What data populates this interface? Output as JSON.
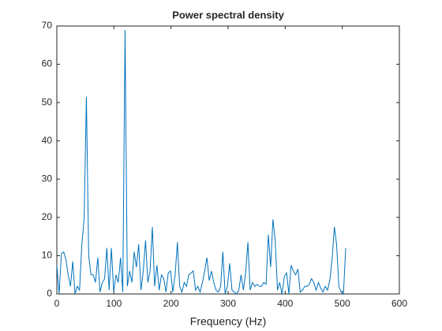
{
  "chart_data": {
    "type": "line",
    "title": "Power spectral density",
    "xlabel": "Frequency (Hz)",
    "x": [
      0,
      4.0,
      8.0,
      12.0,
      15.9,
      19.9,
      23.9,
      27.9,
      31.9,
      35.9,
      39.8,
      43.8,
      47.8,
      51.8,
      55.8,
      59.8,
      63.7,
      67.7,
      71.7,
      75.7,
      79.7,
      83.7,
      87.6,
      91.6,
      95.6,
      99.6,
      103.6,
      107.6,
      111.6,
      115.5,
      119.5,
      123.5,
      127.5,
      131.5,
      135.5,
      139.4,
      143.4,
      147.4,
      151.4,
      155.4,
      159.4,
      163.3,
      167.3,
      171.3,
      175.3,
      179.3,
      183.3,
      187.3,
      191.2,
      195.2,
      199.2,
      203.2,
      207.2,
      211.2,
      215.1,
      219.1,
      223.1,
      227.1,
      231.1,
      235.1,
      239.0,
      243.0,
      247.0,
      251.0,
      255.0,
      259.0,
      262.9,
      266.9,
      270.9,
      274.9,
      278.9,
      282.9,
      286.9,
      290.8,
      294.8,
      298.8,
      302.8,
      306.8,
      310.8,
      314.7,
      318.7,
      322.7,
      326.7,
      330.7,
      334.7,
      338.6,
      342.6,
      346.6,
      350.6,
      354.6,
      358.6,
      362.5,
      366.5,
      370.5,
      374.5,
      378.5,
      382.5,
      386.5,
      390.4,
      394.4,
      398.4,
      402.4,
      406.4,
      410.4,
      414.3,
      418.3,
      422.3,
      426.3,
      430.3,
      434.3,
      438.2,
      442.2,
      446.2,
      450.2,
      454.2,
      458.2,
      462.2,
      466.1,
      470.1,
      474.1,
      478.1,
      482.1,
      486.1,
      490.0,
      494.0,
      498.0,
      502.0,
      506.0
    ],
    "series": [
      {
        "color": "#0072bd",
        "values": [
          7.5,
          0,
          10.5,
          11,
          9,
          5,
          2,
          8.5,
          0,
          2,
          1,
          13,
          19.5,
          51.5,
          10,
          5,
          5,
          3,
          9.5,
          0.5,
          3,
          4,
          12,
          1,
          12,
          0.5,
          5,
          3,
          9.5,
          0.5,
          69,
          2,
          6,
          3,
          11,
          7,
          13,
          1,
          6,
          14,
          3,
          6,
          17.5,
          2,
          7.5,
          1,
          5,
          4,
          0.5,
          5.5,
          6,
          0.5,
          5,
          13.5,
          2,
          0.5,
          3,
          2,
          5,
          5.5,
          6,
          1,
          2,
          0.5,
          3,
          6,
          9.5,
          3.5,
          6,
          3,
          1,
          0.5,
          2,
          11,
          0,
          2,
          8,
          1,
          0.5,
          0,
          1,
          5,
          1,
          5.5,
          13.5,
          1,
          3,
          2,
          2.5,
          2,
          2,
          3,
          2.5,
          15.5,
          7,
          19.5,
          14,
          1,
          3,
          0,
          4.5,
          5.5,
          0,
          7.5,
          6,
          5,
          6.5,
          0.5,
          1,
          2,
          2,
          2.5,
          4,
          3,
          1,
          3,
          1.5,
          0.5,
          2,
          1,
          3.5,
          9,
          17.5,
          13,
          2,
          0.5,
          0,
          12
        ]
      }
    ],
    "xlim": [
      0,
      600
    ],
    "xticks": [
      0,
      100,
      200,
      300,
      400,
      500,
      600
    ],
    "ylim": [
      0,
      70
    ],
    "yticks": [
      0,
      10,
      20,
      30,
      40,
      50,
      60,
      70
    ],
    "grid": false
  }
}
